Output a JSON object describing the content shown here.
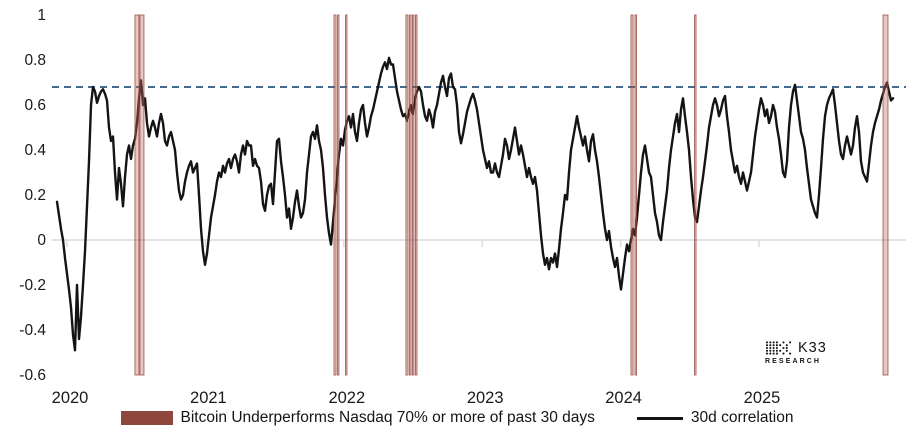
{
  "colors": {
    "series_line": "#141414",
    "band_fill": "rgba(192,108,98,0.38)",
    "band_edge": "rgba(146,64,54,0.8)",
    "threshold_dashed": "#2a5783",
    "zero_line": "#e0e3e7",
    "axis_tick": "#d8dce1",
    "legend_band_swatch": "#8e463d"
  },
  "legend": {
    "items": [
      {
        "label": "Bitcoin Underperforms Nasdaq 70% or more of past 30 days",
        "swatch": "band"
      },
      {
        "label": "30d correlation",
        "swatch": "line"
      }
    ]
  },
  "logo": {
    "name": "K33",
    "sub": "RESEARCH"
  },
  "chart_data": {
    "type": "line",
    "title": "",
    "xlabel": "",
    "ylabel": "",
    "ylim": [
      -0.6,
      1
    ],
    "xlim": [
      2019.93,
      2026.05
    ],
    "grid": "zero-line-only",
    "legend_position": "bottom-center",
    "threshold_line": {
      "value": 0.68,
      "style": "dashed"
    },
    "yticks": [
      {
        "label": "1",
        "value": 1
      },
      {
        "label": "0.8",
        "value": 0.8
      },
      {
        "label": "0.6",
        "value": 0.6
      },
      {
        "label": "0.4",
        "value": 0.4
      },
      {
        "label": "0.2",
        "value": 0.2
      },
      {
        "label": "0",
        "value": 0
      },
      {
        "label": "-0.2",
        "value": -0.2
      },
      {
        "label": "-0.4",
        "value": -0.4
      },
      {
        "label": "-0.6",
        "value": -0.6
      }
    ],
    "xticks": [
      {
        "label": "2020",
        "value": 2020
      },
      {
        "label": "2021",
        "value": 2021
      },
      {
        "label": "2022",
        "value": 2022
      },
      {
        "label": "2023",
        "value": 2023
      },
      {
        "label": "2024",
        "value": 2024
      },
      {
        "label": "2025",
        "value": 2025
      }
    ],
    "underperformance_bands": [
      {
        "from": 2020.491,
        "to": 2020.52
      },
      {
        "from": 2020.527,
        "to": 2020.556
      },
      {
        "from": 2021.929,
        "to": 2021.944
      },
      {
        "from": 2021.955,
        "to": 2021.965
      },
      {
        "from": 2022.012,
        "to": 2022.023
      },
      {
        "from": 2022.449,
        "to": 2022.464
      },
      {
        "from": 2022.475,
        "to": 2022.486
      },
      {
        "from": 2022.496,
        "to": 2022.507
      },
      {
        "from": 2022.518,
        "to": 2022.529
      },
      {
        "from": 2024.075,
        "to": 2024.09
      },
      {
        "from": 2024.104,
        "to": 2024.115
      },
      {
        "from": 2024.534,
        "to": 2024.545
      },
      {
        "from": 2025.896,
        "to": 2025.932
      }
    ],
    "series": [
      {
        "name": "30d correlation",
        "x_start": 2019.928,
        "x_step": 0.01445,
        "values": [
          0.17,
          0.11,
          0.05,
          0.0,
          -0.08,
          -0.15,
          -0.22,
          -0.3,
          -0.42,
          -0.49,
          -0.2,
          -0.44,
          -0.34,
          -0.2,
          -0.05,
          0.15,
          0.35,
          0.6,
          0.68,
          0.66,
          0.61,
          0.64,
          0.66,
          0.67,
          0.65,
          0.62,
          0.5,
          0.44,
          0.46,
          0.3,
          0.18,
          0.32,
          0.25,
          0.15,
          0.28,
          0.38,
          0.42,
          0.36,
          0.42,
          0.45,
          0.52,
          0.63,
          0.71,
          0.6,
          0.63,
          0.52,
          0.46,
          0.5,
          0.53,
          0.5,
          0.46,
          0.52,
          0.56,
          0.52,
          0.44,
          0.42,
          0.46,
          0.48,
          0.44,
          0.4,
          0.3,
          0.22,
          0.18,
          0.2,
          0.26,
          0.3,
          0.33,
          0.35,
          0.3,
          0.32,
          0.34,
          0.2,
          0.05,
          -0.05,
          -0.11,
          -0.06,
          0.02,
          0.1,
          0.15,
          0.2,
          0.26,
          0.3,
          0.28,
          0.33,
          0.3,
          0.34,
          0.36,
          0.32,
          0.36,
          0.38,
          0.35,
          0.3,
          0.38,
          0.42,
          0.38,
          0.44,
          0.42,
          0.42,
          0.33,
          0.36,
          0.33,
          0.32,
          0.26,
          0.16,
          0.13,
          0.2,
          0.24,
          0.25,
          0.16,
          0.3,
          0.44,
          0.45,
          0.35,
          0.28,
          0.2,
          0.1,
          0.14,
          0.05,
          0.1,
          0.17,
          0.22,
          0.15,
          0.1,
          0.12,
          0.18,
          0.3,
          0.38,
          0.46,
          0.48,
          0.45,
          0.51,
          0.44,
          0.4,
          0.32,
          0.2,
          0.1,
          0.03,
          -0.02,
          0.08,
          0.18,
          0.28,
          0.38,
          0.45,
          0.42,
          0.49,
          0.53,
          0.55,
          0.5,
          0.56,
          0.48,
          0.44,
          0.52,
          0.58,
          0.6,
          0.52,
          0.46,
          0.5,
          0.55,
          0.58,
          0.62,
          0.66,
          0.7,
          0.74,
          0.77,
          0.79,
          0.76,
          0.81,
          0.78,
          0.78,
          0.72,
          0.66,
          0.62,
          0.58,
          0.55,
          0.56,
          0.53,
          0.57,
          0.6,
          0.56,
          0.63,
          0.66,
          0.68,
          0.66,
          0.6,
          0.55,
          0.53,
          0.58,
          0.55,
          0.5,
          0.57,
          0.6,
          0.65,
          0.7,
          0.73,
          0.68,
          0.64,
          0.72,
          0.74,
          0.68,
          0.67,
          0.6,
          0.48,
          0.43,
          0.47,
          0.52,
          0.57,
          0.6,
          0.63,
          0.65,
          0.62,
          0.58,
          0.52,
          0.46,
          0.4,
          0.36,
          0.32,
          0.35,
          0.3,
          0.3,
          0.34,
          0.3,
          0.28,
          0.33,
          0.38,
          0.45,
          0.42,
          0.36,
          0.4,
          0.45,
          0.5,
          0.44,
          0.38,
          0.42,
          0.38,
          0.33,
          0.28,
          0.32,
          0.28,
          0.25,
          0.28,
          0.22,
          0.12,
          0.02,
          -0.06,
          -0.11,
          -0.08,
          -0.13,
          -0.08,
          -0.1,
          -0.06,
          -0.12,
          -0.04,
          0.05,
          0.12,
          0.2,
          0.18,
          0.3,
          0.4,
          0.45,
          0.5,
          0.55,
          0.5,
          0.46,
          0.42,
          0.46,
          0.4,
          0.35,
          0.44,
          0.47,
          0.4,
          0.35,
          0.28,
          0.2,
          0.12,
          0.05,
          0.0,
          0.04,
          -0.03,
          -0.08,
          -0.12,
          -0.08,
          -0.16,
          -0.22,
          -0.15,
          -0.08,
          -0.02,
          -0.05,
          0.0,
          0.05,
          0.02,
          0.1,
          0.2,
          0.3,
          0.38,
          0.42,
          0.36,
          0.3,
          0.28,
          0.2,
          0.12,
          0.08,
          0.02,
          0.0,
          0.08,
          0.15,
          0.22,
          0.32,
          0.4,
          0.46,
          0.52,
          0.56,
          0.48,
          0.58,
          0.63,
          0.55,
          0.48,
          0.4,
          0.28,
          0.18,
          0.1,
          0.08,
          0.15,
          0.22,
          0.28,
          0.35,
          0.42,
          0.5,
          0.55,
          0.6,
          0.63,
          0.6,
          0.55,
          0.58,
          0.62,
          0.64,
          0.55,
          0.48,
          0.4,
          0.35,
          0.3,
          0.33,
          0.28,
          0.25,
          0.3,
          0.26,
          0.22,
          0.26,
          0.3,
          0.38,
          0.46,
          0.52,
          0.58,
          0.63,
          0.6,
          0.55,
          0.58,
          0.52,
          0.55,
          0.6,
          0.57,
          0.5,
          0.45,
          0.38,
          0.3,
          0.28,
          0.35,
          0.5,
          0.6,
          0.66,
          0.69,
          0.62,
          0.55,
          0.48,
          0.45,
          0.4,
          0.32,
          0.25,
          0.18,
          0.15,
          0.12,
          0.1,
          0.2,
          0.32,
          0.45,
          0.55,
          0.6,
          0.63,
          0.65,
          0.67,
          0.6,
          0.52,
          0.44,
          0.38,
          0.36,
          0.42,
          0.46,
          0.42,
          0.38,
          0.42,
          0.5,
          0.55,
          0.48,
          0.35,
          0.3,
          0.28,
          0.26,
          0.34,
          0.42,
          0.48,
          0.52,
          0.55,
          0.58,
          0.62,
          0.65,
          0.68,
          0.7,
          0.66,
          0.62,
          0.63
        ]
      }
    ]
  }
}
